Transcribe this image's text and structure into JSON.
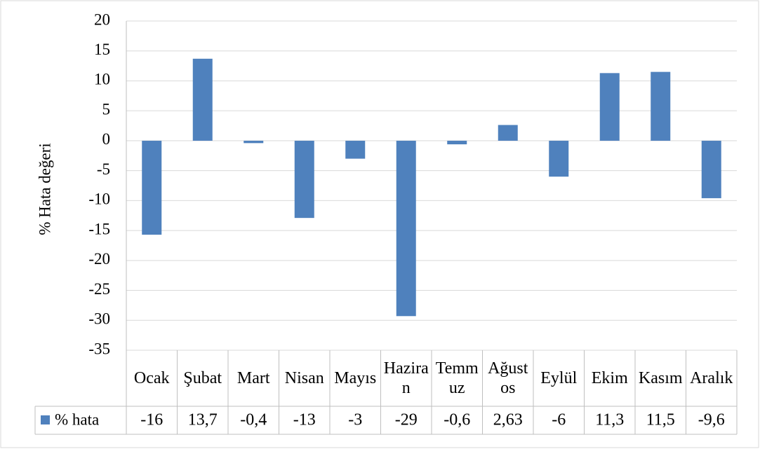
{
  "chart_data": {
    "type": "bar",
    "y_label": "% Hata değeri",
    "categories": [
      "Ocak",
      "Şubat",
      "Mart",
      "Nisan",
      "Mayıs",
      "Haziran",
      "Temmuz",
      "Ağustos",
      "Eylül",
      "Ekim",
      "Kasım",
      "Aralık"
    ],
    "series": [
      {
        "name": "% hata",
        "color": "#4f81bd",
        "values": [
          -15.7,
          13.7,
          -0.4,
          -12.9,
          -3,
          -29.3,
          -0.6,
          2.63,
          -6,
          11.3,
          11.5,
          -9.6
        ],
        "value_labels": [
          "-16",
          "13,7",
          "-0,4",
          "-13",
          "-3",
          "-29",
          "-0,6",
          "2,63",
          "-6",
          "11,3",
          "11,5",
          "-9,6"
        ]
      }
    ],
    "ylim": [
      -35,
      20
    ],
    "yticks": [
      -35,
      -30,
      -25,
      -20,
      -15,
      -10,
      -5,
      0,
      5,
      10,
      15,
      20
    ],
    "grid": true
  }
}
